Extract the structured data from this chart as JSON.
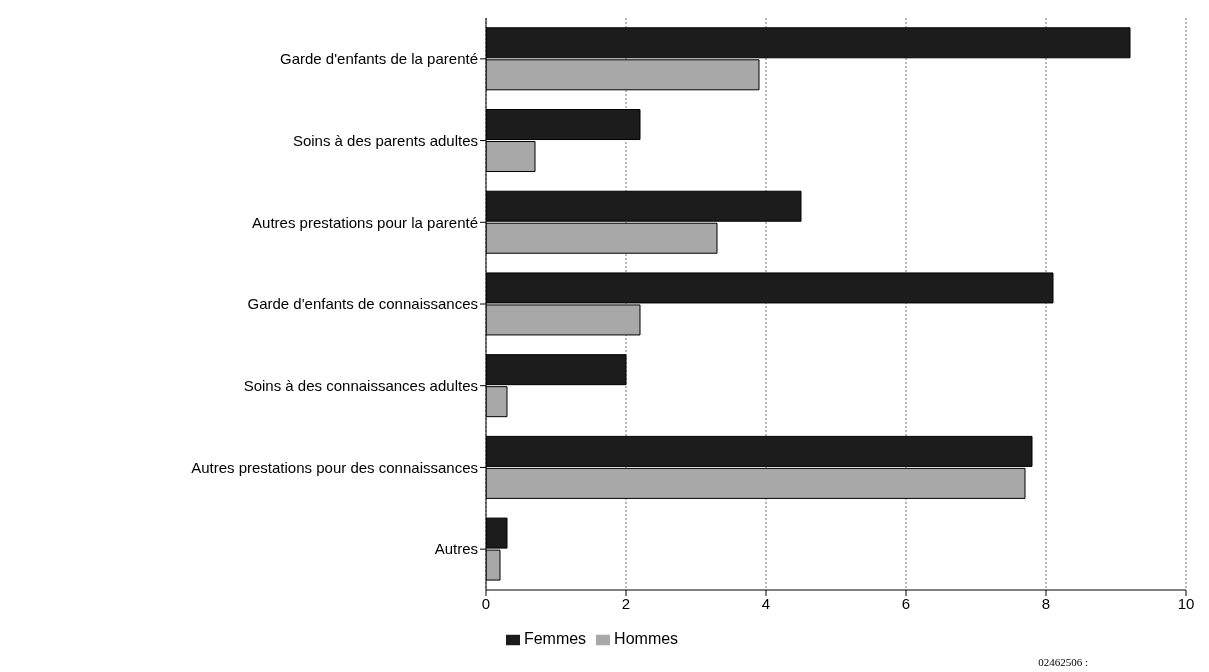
{
  "chart_data": {
    "type": "bar",
    "orientation": "horizontal",
    "categories": [
      "Garde d'enfants de la parenté",
      "Soins à des parents adultes",
      "Autres prestations pour la parenté",
      "Garde d'enfants de connaissances",
      "Soins à des connaissances adultes",
      "Autres prestations pour des connaissances",
      "Autres"
    ],
    "series": [
      {
        "name": "Femmes",
        "color": "#1c1c1c",
        "values": [
          9.2,
          2.2,
          4.5,
          8.1,
          2.0,
          7.8,
          0.3
        ]
      },
      {
        "name": "Hommes",
        "color": "#a8a8a8",
        "values": [
          3.9,
          0.7,
          3.3,
          2.2,
          0.3,
          7.7,
          0.2
        ]
      }
    ],
    "xlim": [
      0,
      10
    ],
    "xticks": [
      0,
      2,
      4,
      6,
      8,
      10
    ],
    "grid": "x",
    "legend": "bottom",
    "annotations": [
      "02462506 :"
    ]
  }
}
